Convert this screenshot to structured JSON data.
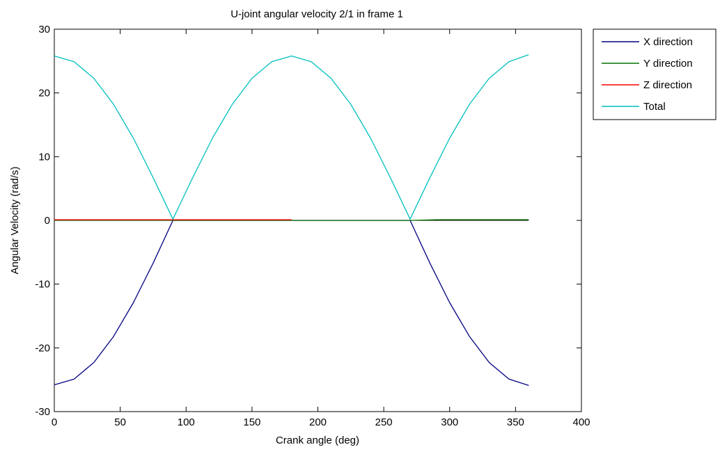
{
  "chart_data": {
    "type": "line",
    "title": "U-joint angular velocity 2/1 in frame 1",
    "xlabel": "Crank angle (deg)",
    "ylabel": "Angular Velocity (rad/s)",
    "xlim": [
      0,
      400
    ],
    "ylim": [
      -30,
      30
    ],
    "xticks": [
      0,
      50,
      100,
      150,
      200,
      250,
      300,
      350,
      400
    ],
    "yticks": [
      -30,
      -20,
      -10,
      0,
      10,
      20,
      30
    ],
    "grid": false,
    "legend_position": "outside-top-right",
    "series": [
      {
        "name": "X direction",
        "color": "#000080",
        "x": [
          0,
          15,
          30,
          45,
          60,
          75,
          90,
          105,
          120,
          135,
          150,
          165,
          180,
          195,
          210,
          225,
          240,
          255,
          270,
          285,
          300,
          315,
          330,
          345,
          360
        ],
        "y": [
          -25.8,
          -24.9,
          -22.3,
          -18.2,
          -12.9,
          -6.7,
          0.0,
          0.0,
          0.0,
          0.0,
          0.0,
          0.0,
          0.0,
          0.0,
          0.0,
          0.0,
          0.0,
          0.0,
          0.0,
          -6.7,
          -12.9,
          -18.2,
          -22.3,
          -24.9,
          -25.9
        ]
      },
      {
        "name": "Y direction",
        "color": "#007000",
        "x": [
          0,
          90,
          180,
          270,
          290,
          360
        ],
        "y": [
          0.0,
          0.0,
          0.0,
          0.0,
          0.1,
          0.1
        ]
      },
      {
        "name": "Z direction",
        "color": "#ff0000",
        "x": [
          0,
          90,
          180
        ],
        "y": [
          0.1,
          0.1,
          0.1
        ]
      },
      {
        "name": "Total",
        "color": "#00bfbf",
        "x": [
          0,
          15,
          30,
          45,
          60,
          75,
          90,
          105,
          120,
          135,
          150,
          165,
          180,
          195,
          210,
          225,
          240,
          255,
          270,
          285,
          300,
          315,
          330,
          345,
          360
        ],
        "y": [
          25.8,
          24.9,
          22.3,
          18.2,
          12.9,
          6.7,
          0.2,
          6.7,
          12.9,
          18.2,
          22.3,
          24.9,
          25.8,
          24.9,
          22.3,
          18.2,
          12.9,
          6.7,
          0.2,
          6.7,
          12.9,
          18.2,
          22.3,
          24.9,
          26.0
        ]
      }
    ],
    "reference_line": {
      "y": 0,
      "x_range": [
        0,
        360
      ],
      "color": "#000000"
    }
  }
}
